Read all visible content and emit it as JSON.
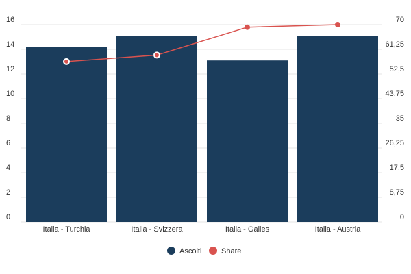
{
  "chart_data": {
    "type": "bar",
    "title": "",
    "xlabel": "",
    "ylabel": "",
    "categories": [
      "Italia - Turchia",
      "Italia - Svizzera",
      "Italia - Galles",
      "Italia - Austria"
    ],
    "series": [
      {
        "name": "Ascolti",
        "kind": "bar",
        "axis": "left",
        "values": [
          14.2,
          15.1,
          13.1,
          15.1
        ],
        "color": "#1b3d5c"
      },
      {
        "name": "Share",
        "kind": "line",
        "axis": "right",
        "values": [
          56.9,
          59.2,
          69.1,
          70.0
        ],
        "color": "#d9534f"
      }
    ],
    "y_left": {
      "ylim": [
        0,
        16
      ],
      "ticks": [
        "0",
        "2",
        "4",
        "6",
        "8",
        "10",
        "12",
        "14",
        "16"
      ]
    },
    "y_right": {
      "ylim": [
        0,
        70
      ],
      "ticks": [
        "0",
        "8,75",
        "17,5",
        "26,25",
        "35",
        "43,75",
        "52,5",
        "61,25",
        "70"
      ]
    },
    "grid": true,
    "legend_position": "bottom-center"
  }
}
